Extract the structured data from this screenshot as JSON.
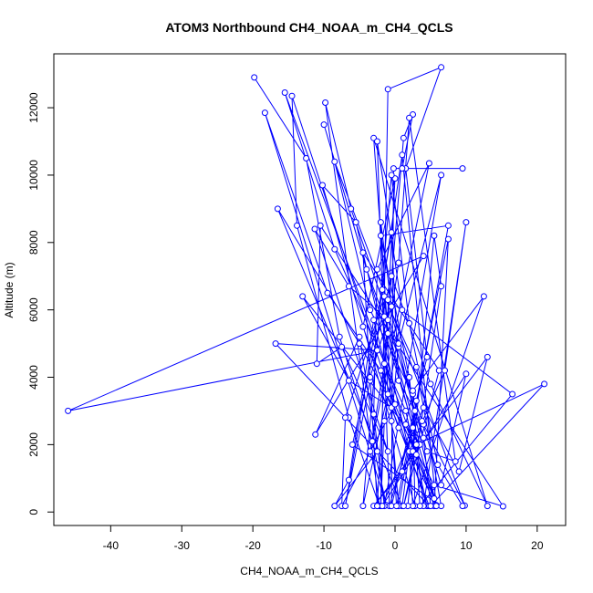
{
  "chart_data": {
    "type": "line",
    "title": "ATOM3 Northbound CH4_NOAA_m_CH4_QCLS",
    "xlabel": "CH4_NOAA_m_CH4_QCLS",
    "ylabel": "Altitude (m)",
    "xlim": [
      -48,
      24
    ],
    "ylim": [
      -400,
      13600
    ],
    "xticks": [
      -40,
      -30,
      -20,
      -10,
      0,
      10,
      20
    ],
    "yticks": [
      0,
      2000,
      4000,
      6000,
      8000,
      10000,
      12000
    ],
    "grid": false,
    "color": "#0000ff",
    "series": [
      {
        "points": [
          [
            -19.8,
            12900
          ],
          [
            -12.5,
            10500
          ],
          [
            -7.8,
            5200
          ],
          [
            -3.2,
            2100
          ],
          [
            -1.2,
            200
          ],
          [
            -18.3,
            11850
          ],
          [
            -9.5,
            6500
          ],
          [
            -2.0,
            4200
          ],
          [
            5.5,
            400
          ],
          [
            -15.5,
            12450
          ],
          [
            -8.5,
            7800
          ],
          [
            1.5,
            3000
          ],
          [
            4.5,
            180
          ],
          [
            -14.5,
            12350
          ],
          [
            -13.8,
            8500
          ],
          [
            -6.5,
            2800
          ],
          [
            -2.2,
            180
          ],
          [
            -9.8,
            12150
          ],
          [
            -6.2,
            9000
          ],
          [
            0.5,
            4900
          ],
          [
            5.8,
            200
          ],
          [
            -10.0,
            11500
          ],
          [
            -4.0,
            7200
          ],
          [
            4.0,
            2600
          ],
          [
            9.8,
            190
          ],
          [
            -8.5,
            10400
          ],
          [
            -3.5,
            6000
          ],
          [
            2.5,
            3500
          ],
          [
            2.8,
            180
          ],
          [
            -10.2,
            9700
          ],
          [
            -5.5,
            8600
          ],
          [
            2.0,
            1800
          ],
          [
            1.0,
            180
          ],
          [
            -16.5,
            9000
          ],
          [
            -5.0,
            5000
          ],
          [
            5.5,
            800
          ],
          [
            15.2,
            170
          ],
          [
            -10.5,
            8500
          ],
          [
            -11.0,
            4400
          ],
          [
            -7.5,
            4900
          ],
          [
            -1.0,
            1800
          ],
          [
            -11.3,
            8400
          ],
          [
            -6.5,
            6700
          ],
          [
            -1.5,
            5800
          ],
          [
            3.5,
            2000
          ],
          [
            -13.0,
            6400
          ],
          [
            -6.5,
            3900
          ],
          [
            -0.5,
            3100
          ],
          [
            4.8,
            180
          ],
          [
            -16.8,
            5000
          ],
          [
            -2.5,
            4800
          ],
          [
            -46.0,
            3000
          ],
          [
            4.0,
            7600
          ],
          [
            -11.2,
            2300
          ],
          [
            -5.0,
            5200
          ],
          [
            -2.5,
            1800
          ],
          [
            -8.5,
            180
          ],
          [
            -6.5,
            950
          ],
          [
            -3.0,
            5700
          ],
          [
            0.0,
            3200
          ],
          [
            -7.5,
            180
          ],
          [
            -7.0,
            2800
          ],
          [
            -1.5,
            6400
          ],
          [
            3.0,
            4300
          ],
          [
            6.5,
            180
          ],
          [
            -6.0,
            2000
          ],
          [
            -0.5,
            7000
          ],
          [
            5.0,
            3800
          ],
          [
            13.0,
            180
          ],
          [
            -3.0,
            11100
          ],
          [
            -1.0,
            5300
          ],
          [
            2.5,
            2500
          ],
          [
            -0.8,
            180
          ],
          [
            -2.5,
            11000
          ],
          [
            1.0,
            6000
          ],
          [
            -1.5,
            2700
          ],
          [
            -2.0,
            180
          ],
          [
            -1.0,
            12550
          ],
          [
            6.5,
            13200
          ],
          [
            1.5,
            10200
          ],
          [
            4.5,
            4600
          ],
          [
            -0.5,
            180
          ],
          [
            -0.2,
            10200
          ],
          [
            9.5,
            10200
          ],
          [
            1.0,
            10200
          ],
          [
            2.5,
            11800
          ],
          [
            1.2,
            11100
          ],
          [
            -1.0,
            5700
          ],
          [
            4.5,
            1800
          ],
          [
            8.5,
            1500
          ],
          [
            2.0,
            11700
          ],
          [
            0.5,
            7400
          ],
          [
            -1.5,
            4400
          ],
          [
            -3.5,
            1800
          ],
          [
            4.8,
            10350
          ],
          [
            -2.5,
            7200
          ],
          [
            -3.0,
            2900
          ],
          [
            -1.5,
            180
          ],
          [
            6.5,
            10000
          ],
          [
            0.5,
            5000
          ],
          [
            -0.5,
            2700
          ],
          [
            0.5,
            180
          ],
          [
            7.5,
            8500
          ],
          [
            -2.0,
            8200
          ],
          [
            2.0,
            4000
          ],
          [
            4.0,
            180
          ],
          [
            10.0,
            8600
          ],
          [
            7.0,
            4200
          ],
          [
            2.0,
            1800
          ],
          [
            2.5,
            180
          ],
          [
            12.5,
            6400
          ],
          [
            2.5,
            3600
          ],
          [
            1.5,
            2600
          ],
          [
            5.5,
            180
          ],
          [
            7.5,
            8100
          ],
          [
            3.0,
            3300
          ],
          [
            2.5,
            1800
          ],
          [
            1.8,
            180
          ],
          [
            5.5,
            8200
          ],
          [
            6.5,
            6700
          ],
          [
            3.0,
            1700
          ],
          [
            3.5,
            180
          ],
          [
            16.5,
            3500
          ],
          [
            -1.0,
            6300
          ],
          [
            4.0,
            2200
          ],
          [
            5.0,
            180
          ],
          [
            21.0,
            3800
          ],
          [
            3.0,
            2000
          ],
          [
            1.0,
            1200
          ],
          [
            -3.0,
            180
          ],
          [
            13.0,
            4600
          ],
          [
            9.0,
            1200
          ],
          [
            4.0,
            3100
          ],
          [
            -1.8,
            180
          ],
          [
            10.0,
            4100
          ],
          [
            6.5,
            800
          ],
          [
            3.8,
            2700
          ],
          [
            1.2,
            180
          ],
          [
            6.2,
            4200
          ],
          [
            -4.5,
            7700
          ],
          [
            -3.5,
            3900
          ],
          [
            -7.0,
            180
          ],
          [
            -0.5,
            8300
          ],
          [
            0.5,
            3900
          ],
          [
            2.8,
            3000
          ],
          [
            0.2,
            180
          ],
          [
            -2.0,
            8600
          ],
          [
            -0.5,
            6100
          ],
          [
            -3.5,
            4000
          ],
          [
            -2.5,
            180
          ],
          [
            0.0,
            9900
          ],
          [
            -4.5,
            5500
          ],
          [
            0.5,
            2500
          ],
          [
            5.8,
            180
          ],
          [
            1.0,
            10600
          ],
          [
            -1.8,
            6600
          ],
          [
            -1.0,
            3500
          ],
          [
            -4.5,
            180
          ],
          [
            -0.5,
            10000
          ],
          [
            2.0,
            5600
          ],
          [
            6.0,
            1400
          ],
          [
            9.5,
            180
          ]
        ]
      }
    ]
  }
}
